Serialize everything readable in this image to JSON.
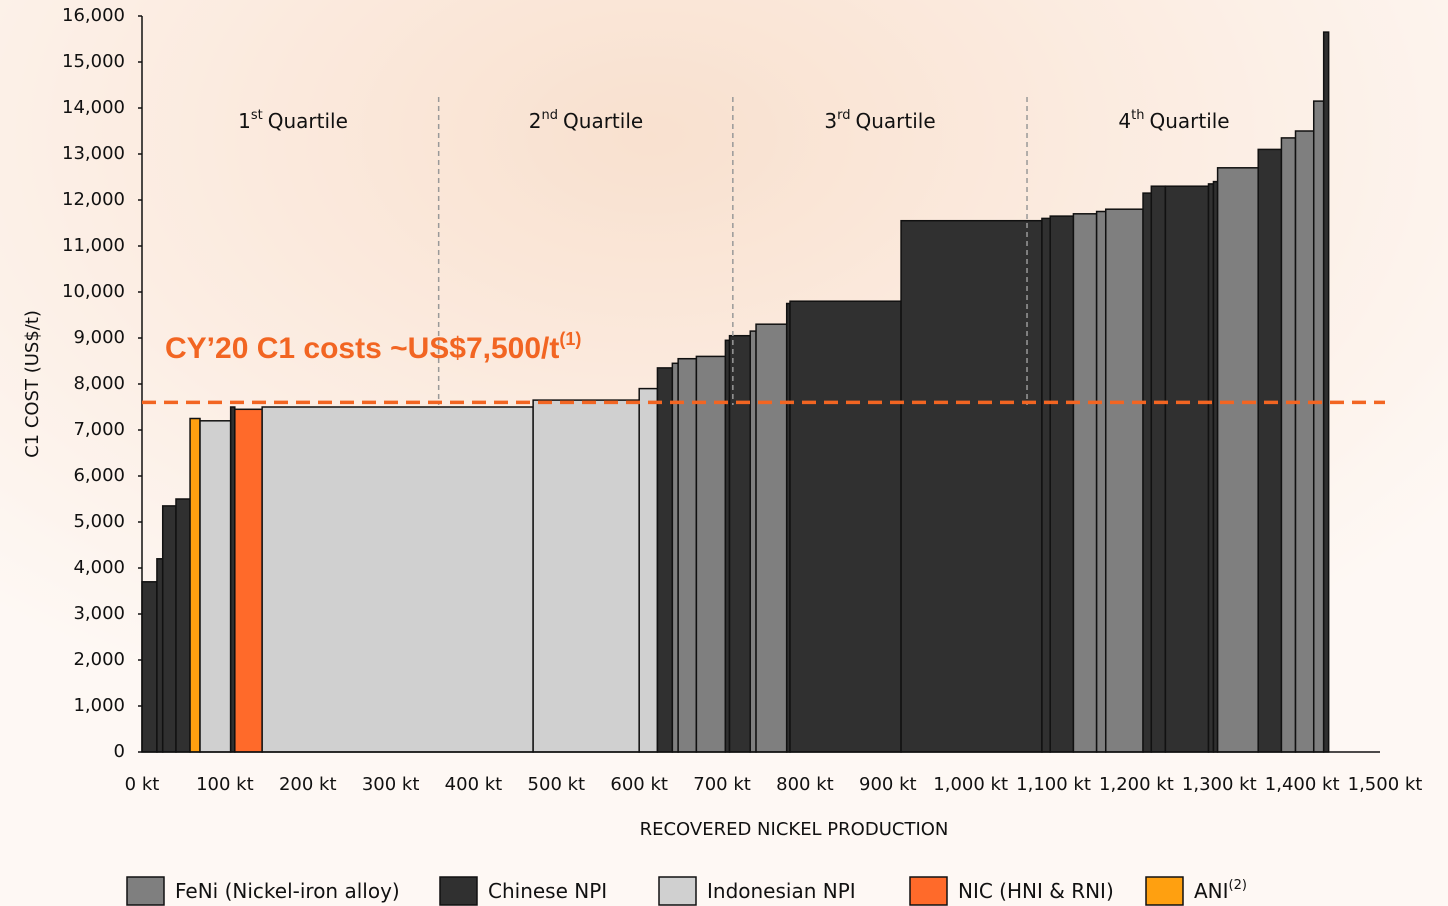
{
  "chart_data": {
    "type": "cost_curve",
    "y_label": "C1 COST (US$/t)",
    "x_label": "RECOVERED NICKEL PRODUCTION",
    "xlim": [
      0,
      1500
    ],
    "xticks": [
      {
        "value": 0,
        "label": "0 kt"
      },
      {
        "value": 100,
        "label": "100 kt"
      },
      {
        "value": 200,
        "label": "200 kt"
      },
      {
        "value": 300,
        "label": "300 kt"
      },
      {
        "value": 400,
        "label": "400 kt"
      },
      {
        "value": 500,
        "label": "500 kt"
      },
      {
        "value": 600,
        "label": "600 kt"
      },
      {
        "value": 700,
        "label": "700 kt"
      },
      {
        "value": 800,
        "label": "800 kt"
      },
      {
        "value": 900,
        "label": "900 kt"
      },
      {
        "value": 1000,
        "label": "1,000 kt"
      },
      {
        "value": 1100,
        "label": "1,100 kt"
      },
      {
        "value": 1200,
        "label": "1,200 kt"
      },
      {
        "value": 1300,
        "label": "1,300 kt"
      },
      {
        "value": 1400,
        "label": "1,400 kt"
      },
      {
        "value": 1500,
        "label": "1,500 kt"
      }
    ],
    "ylim": [
      0,
      16000
    ],
    "yticks": [
      0,
      {
        "value": 1000,
        "label": "1,000"
      },
      {
        "value": 2000,
        "label": "2,000"
      },
      {
        "value": 3000,
        "label": "3,000"
      },
      {
        "value": 4000,
        "label": "4,000"
      },
      {
        "value": 5000,
        "label": "5,000"
      },
      {
        "value": 6000,
        "label": "6,000"
      },
      {
        "value": 7000,
        "label": "7,000"
      },
      {
        "value": 8000,
        "label": "8,000"
      },
      {
        "value": 9000,
        "label": "9,000"
      },
      {
        "value": 10000,
        "label": "10,000"
      },
      {
        "value": 11000,
        "label": "11,000"
      },
      {
        "value": 12000,
        "label": "12,000"
      },
      {
        "value": 13000,
        "label": "13,000"
      },
      {
        "value": 14000,
        "label": "14,000"
      },
      {
        "value": 15000,
        "label": "15,000"
      },
      {
        "value": 16000,
        "label": "16,000"
      }
    ],
    "series": [
      {
        "name": "FeNi (Nickel-iron alloy)",
        "color": "#7f7f7f"
      },
      {
        "name": "Chinese NPI",
        "color": "#303030"
      },
      {
        "name": "Indonesian NPI",
        "color": "#d0d0d0"
      },
      {
        "name": "NIC (HNI & RNI)",
        "color": "#ff6a2a"
      },
      {
        "name": "ANI",
        "sup": "(2)",
        "color": "#ffa010"
      }
    ],
    "bars": {
      "production": [
        18,
        7,
        16,
        17,
        12,
        37,
        5,
        33,
        327,
        128,
        22,
        18,
        7,
        22,
        35,
        5,
        25,
        7,
        37,
        4,
        134,
        170,
        10,
        28,
        28,
        11,
        45,
        10,
        17,
        52,
        6,
        5,
        49,
        28,
        17,
        22,
        12,
        6
      ],
      "cost": [
        3700,
        4200,
        5350,
        5500,
        7250,
        7200,
        7500,
        7450,
        7500,
        7650,
        7900,
        8350,
        8450,
        8550,
        8600,
        8950,
        9050,
        9150,
        9300,
        9750,
        9800,
        11550,
        11600,
        11650,
        11700,
        11750,
        11800,
        12150,
        12300,
        12300,
        12350,
        12400,
        12700,
        13100,
        13350,
        13500,
        14150,
        15650
      ],
      "series": [
        1,
        1,
        1,
        1,
        4,
        2,
        1,
        3,
        2,
        2,
        2,
        1,
        0,
        0,
        0,
        1,
        1,
        0,
        0,
        1,
        1,
        1,
        1,
        1,
        0,
        0,
        0,
        1,
        1,
        1,
        1,
        1,
        0,
        1,
        0,
        0,
        0,
        1
      ]
    },
    "quartiles": [
      {
        "number": "1",
        "sup": "st",
        "text": "Quartile"
      },
      {
        "number": "2",
        "sup": "nd",
        "text": "Quartile"
      },
      {
        "number": "3",
        "sup": "rd",
        "text": "Quartile"
      },
      {
        "number": "4",
        "sup": "th",
        "text": "Quartile"
      }
    ],
    "quartile_boundaries": [
      358,
      713,
      1068
    ],
    "reference_line": {
      "value": 7600,
      "label": "CY’20 C1 costs ~US$7,500/t",
      "sup": "(1)",
      "color": "#f26522"
    }
  }
}
